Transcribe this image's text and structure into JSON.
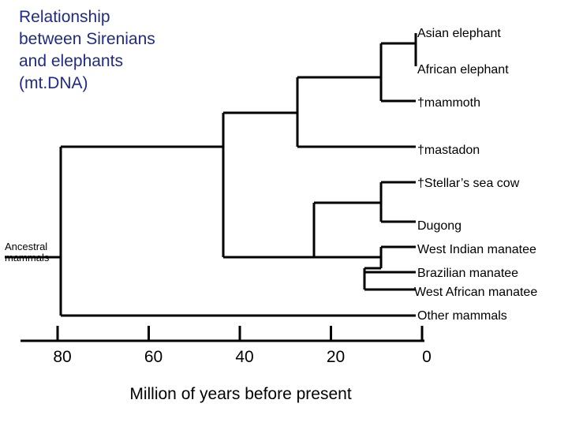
{
  "title": "Relationship\nbetween Sirenians\nand elephants\n(mt.DNA)",
  "root_label": "Ancestral mammals",
  "taxa": [
    {
      "id": "asian",
      "label": "Asian elephant"
    },
    {
      "id": "african",
      "label": "African elephant"
    },
    {
      "id": "mammoth",
      "label": "†mammoth"
    },
    {
      "id": "mastodon",
      "label": "†mastadon"
    },
    {
      "id": "stellar",
      "label": "†Stellar’s sea cow"
    },
    {
      "id": "dugong",
      "label": "Dugong"
    },
    {
      "id": "wimanatee",
      "label": "West Indian manatee"
    },
    {
      "id": "brmanatee",
      "label": "Brazilian manatee"
    },
    {
      "id": "wamanatee",
      "label": "West African manatee"
    },
    {
      "id": "other",
      "label": "Other mammals"
    }
  ],
  "axis": {
    "ticks": [
      80,
      60,
      40,
      20,
      0
    ],
    "label": "Million of years before present"
  }
}
